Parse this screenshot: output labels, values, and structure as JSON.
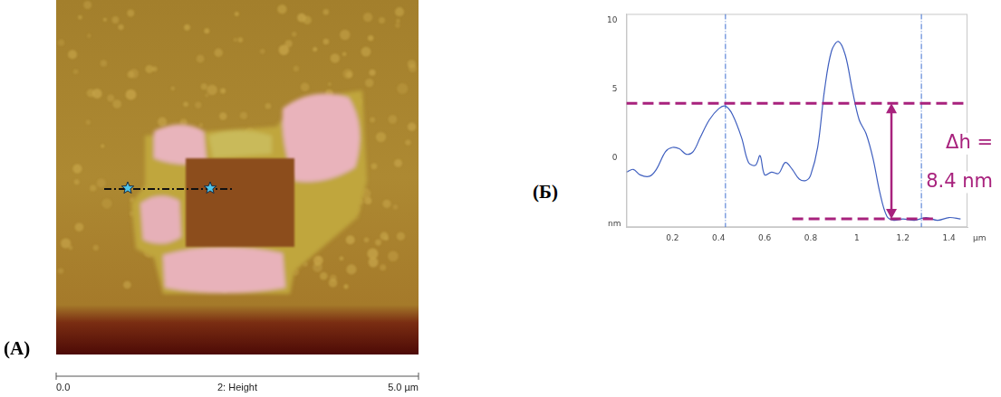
{
  "chart_data": {
    "type": "line",
    "panel_label": "(Б)",
    "xlabel": "µm",
    "ylabel": "nm",
    "x": [
      0,
      0.03,
      0.06,
      0.1,
      0.13,
      0.17,
      0.2,
      0.23,
      0.26,
      0.29,
      0.32,
      0.36,
      0.4,
      0.43,
      0.46,
      0.5,
      0.53,
      0.56,
      0.58,
      0.6,
      0.63,
      0.66,
      0.69,
      0.72,
      0.75,
      0.78,
      0.8,
      0.83,
      0.86,
      0.89,
      0.92,
      0.95,
      0.98,
      1.01,
      1.04,
      1.07,
      1.1,
      1.13,
      1.16,
      1.2,
      1.25,
      1.3,
      1.35,
      1.4,
      1.45
    ],
    "values": [
      -1,
      -0.8,
      -1.2,
      -1.3,
      -0.8,
      0.5,
      0.8,
      0.7,
      0.3,
      0.5,
      1.5,
      2.8,
      3.6,
      3.8,
      3.2,
      1.5,
      -0.3,
      -0.5,
      0.2,
      -1.2,
      -1.0,
      -1.1,
      -0.3,
      -0.8,
      -1.5,
      -1.6,
      -1.2,
      0.8,
      5,
      7.8,
      8.5,
      7.5,
      5,
      2.8,
      1.8,
      0,
      -2.5,
      -4.2,
      -4.5,
      -4.4,
      -4.5,
      -4.3,
      -4.5,
      -4.3,
      -4.4
    ],
    "color": "#3f5fbf",
    "xlim": [
      0,
      1.48
    ],
    "xticks": [
      0.2,
      0.4,
      0.6,
      0.8,
      1,
      1.2,
      1.4
    ],
    "ylim": [
      -5,
      10.5
    ],
    "yticks": [
      0,
      5,
      10
    ],
    "grid": false,
    "annotations": [
      {
        "type": "vline",
        "x": 0.43,
        "color": "#3f6fd0"
      },
      {
        "type": "vline",
        "x": 1.28,
        "color": "#3f6fd0"
      },
      {
        "type": "hline",
        "y": 4,
        "x": [
          0,
          1.48
        ],
        "color": "#a8227d"
      },
      {
        "type": "hline",
        "y": -4.4,
        "x": [
          0.72,
          1.33
        ],
        "color": "#a8227d"
      },
      {
        "type": "arrow",
        "x": 1.15,
        "y": [
          -4.4,
          4
        ],
        "color": "#a8227d",
        "text": [
          "Δh =",
          "8.4 nm"
        ]
      }
    ]
  },
  "image_panel": {
    "panel_label": "(A)",
    "scale_labels": [
      "0.0",
      "2: Height",
      "5.0 µm"
    ]
  }
}
